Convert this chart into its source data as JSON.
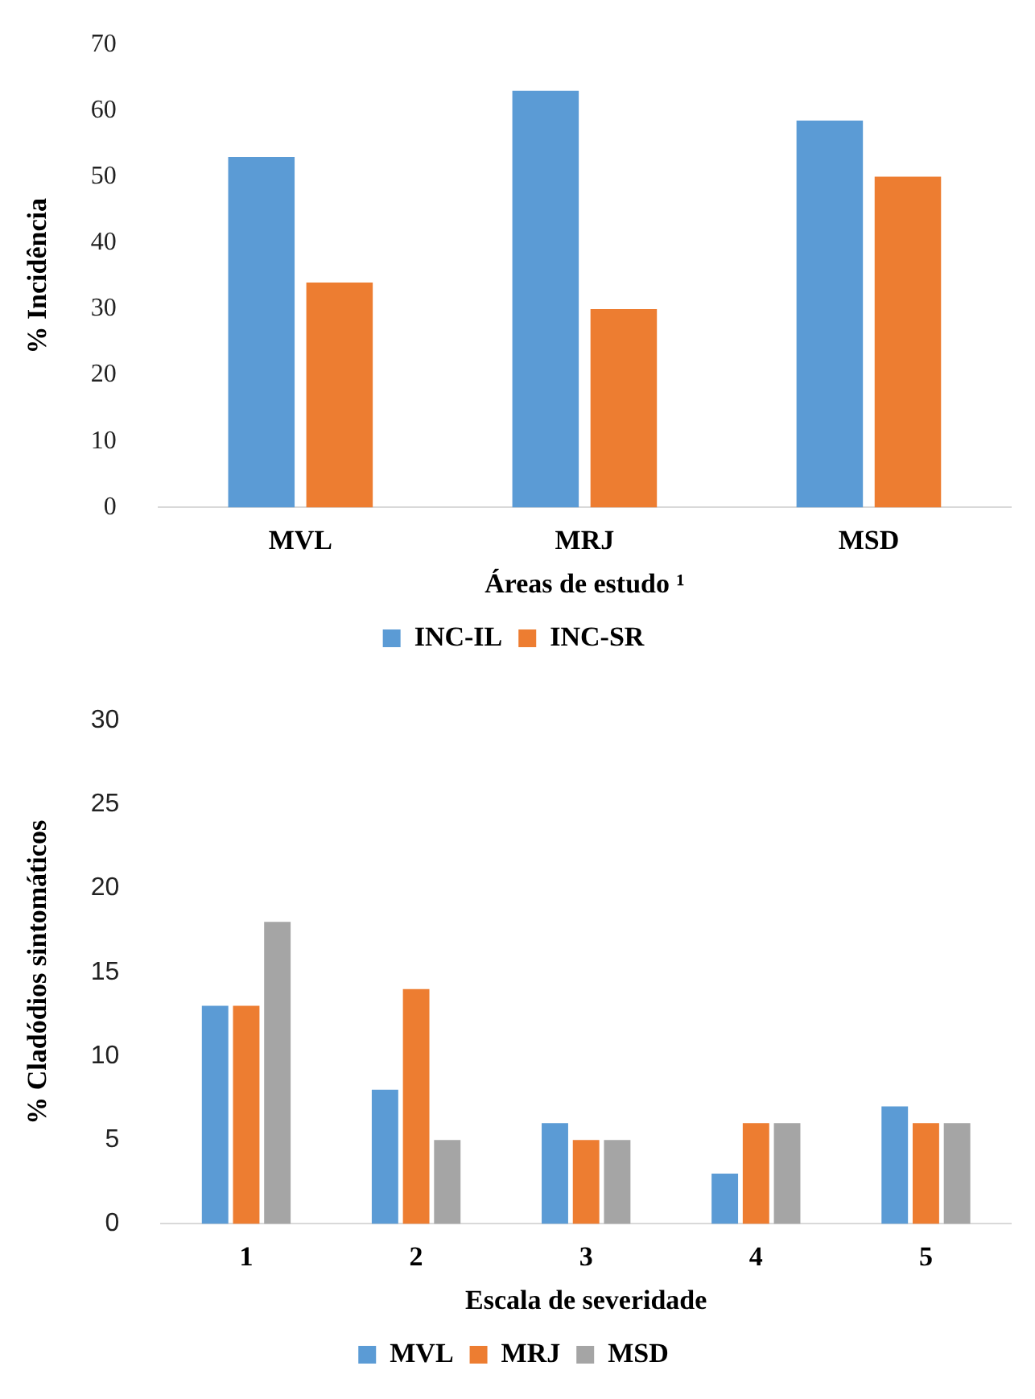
{
  "chart_data": [
    {
      "type": "bar",
      "xlabel": "Áreas de estudo ¹",
      "ylabel": "% Incidência",
      "categories": [
        "MVL",
        "MRJ",
        "MSD"
      ],
      "series": [
        {
          "name": "INC-IL",
          "color": "#5b9bd5",
          "values": [
            53,
            63,
            58.5
          ]
        },
        {
          "name": "INC-SR",
          "color": "#ed7d31",
          "values": [
            34,
            30,
            50
          ]
        }
      ],
      "ylim": [
        0,
        70
      ],
      "yticks": [
        0,
        10,
        20,
        30,
        40,
        50,
        60,
        70
      ],
      "legend": "bottom"
    },
    {
      "type": "bar",
      "xlabel": "Escala de severidade",
      "ylabel": "% Cladódios sintomáticos",
      "categories": [
        "1",
        "2",
        "3",
        "4",
        "5"
      ],
      "series": [
        {
          "name": "MVL",
          "color": "#5b9bd5",
          "values": [
            13,
            8,
            6,
            3,
            7
          ]
        },
        {
          "name": "MRJ",
          "color": "#ed7d31",
          "values": [
            13,
            14,
            5,
            6,
            6
          ]
        },
        {
          "name": "MSD",
          "color": "#a5a5a5",
          "values": [
            18,
            5,
            5,
            6,
            6
          ]
        }
      ],
      "ylim": [
        0,
        30
      ],
      "yticks": [
        0,
        5,
        10,
        15,
        20,
        25,
        30
      ],
      "legend": "bottom"
    }
  ]
}
